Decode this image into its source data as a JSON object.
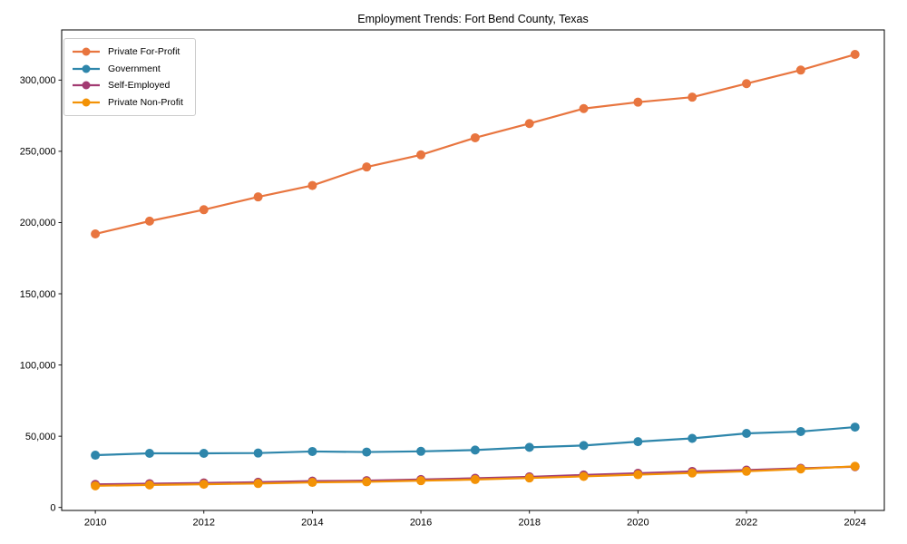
{
  "chart_data": {
    "type": "line",
    "title": "Employment Trends: Fort Bend County, Texas",
    "xlabel": "",
    "ylabel": "",
    "x": [
      2010,
      2011,
      2012,
      2013,
      2014,
      2015,
      2016,
      2017,
      2018,
      2019,
      2020,
      2021,
      2022,
      2023,
      2024
    ],
    "series": [
      {
        "name": "Private For-Profit",
        "color": "#E8753F",
        "values": [
          192000,
          201000,
          209000,
          218000,
          226000,
          239000,
          247500,
          259500,
          269500,
          280000,
          284500,
          288000,
          297500,
          307000,
          318000
        ]
      },
      {
        "name": "Government",
        "color": "#2E86AB",
        "values": [
          36700,
          38000,
          38000,
          38200,
          39300,
          38900,
          39400,
          40300,
          42200,
          43500,
          46200,
          48500,
          52000,
          53300,
          56400
        ]
      },
      {
        "name": "Self-Employed",
        "color": "#A23B72",
        "values": [
          16200,
          16700,
          17200,
          17700,
          18500,
          18800,
          19600,
          20500,
          21500,
          22800,
          24000,
          25300,
          26200,
          27500,
          28600
        ]
      },
      {
        "name": "Private Non-Profit",
        "color": "#F39206",
        "values": [
          15200,
          15800,
          16300,
          16800,
          17600,
          18000,
          18800,
          19600,
          20700,
          21800,
          23000,
          24200,
          25400,
          27000,
          28900
        ]
      }
    ],
    "x_ticks": [
      2010,
      2012,
      2014,
      2016,
      2018,
      2020,
      2022,
      2024
    ],
    "y_ticks": [
      0,
      50000,
      100000,
      150000,
      200000,
      250000,
      300000
    ],
    "xlim": [
      2009.38,
      2024.54
    ],
    "ylim": [
      -2100,
      335200
    ],
    "grid": false,
    "legend_position": "upper left",
    "marker": "circle",
    "line_width": 2.2,
    "marker_radius": 5,
    "axis_color": "#000000",
    "background": "#ffffff",
    "layout": {
      "plot_left": 68,
      "plot_top": 33,
      "plot_right": 975,
      "plot_bottom": 563,
      "tick_length": 3.5
    }
  }
}
